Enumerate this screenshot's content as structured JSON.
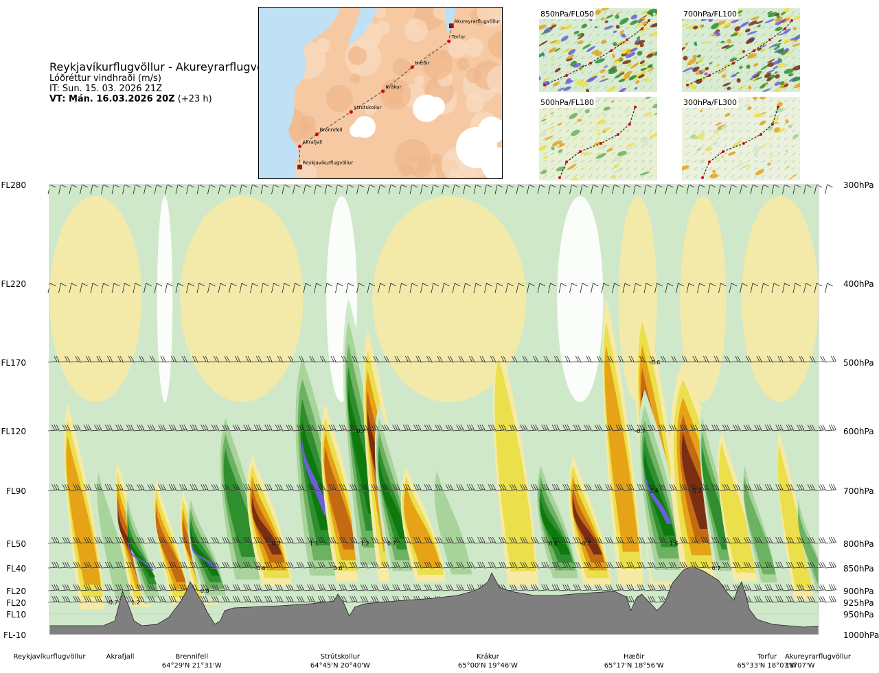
{
  "header": {
    "title": "Reykjavíkurflugvöllur - Akureyrarflugvöllur",
    "parameter": "Lóðréttur vindhraði (m/s)",
    "issue_time": "IT: Sun. 15. 03. 2026 21Z",
    "valid_time_bold": "VT: Mán. 16.03.2026 20Z",
    "valid_time_offset": "(+23 h)"
  },
  "map": {
    "route_points": [
      {
        "name": "Akureyrarflugvöllur",
        "lon": 0.79,
        "lat": 0.11
      },
      {
        "name": "Torfur",
        "lon": 0.78,
        "lat": 0.2
      },
      {
        "name": "Hæðir",
        "lon": 0.63,
        "lat": 0.35
      },
      {
        "name": "Krákur",
        "lon": 0.51,
        "lat": 0.49
      },
      {
        "name": "Strútskollur",
        "lon": 0.38,
        "lat": 0.61
      },
      {
        "name": "Brennifell",
        "lon": 0.24,
        "lat": 0.74
      },
      {
        "name": "Akrafjall",
        "lon": 0.17,
        "lat": 0.81
      },
      {
        "name": "Reykjavíkurflugvöllur",
        "lon": 0.17,
        "lat": 0.93
      }
    ],
    "colors": {
      "sea": "#bfe0f5",
      "land": "#f6c9a3",
      "ice": "#ffffff",
      "route": "#444444",
      "marker": "#e0001b"
    }
  },
  "insets": [
    {
      "label": "850hPa/FL050"
    },
    {
      "label": "700hPa/FL100"
    },
    {
      "label": "500hPa/FL180"
    },
    {
      "label": "300hPa/FL300"
    }
  ],
  "chart_data": {
    "type": "heatmap",
    "title": "Reykjavíkurflugvöllur - Akureyrarflugvöllur",
    "quantity": "Lóðréttur vindhraði (m/s)",
    "x_range": [
      0,
      1
    ],
    "y_levels": [
      {
        "fl": "FL280",
        "hpa": "300hPa",
        "p": 300
      },
      {
        "fl": "FL220",
        "hpa": "400hPa",
        "p": 400
      },
      {
        "fl": "FL170",
        "hpa": "500hPa",
        "p": 500
      },
      {
        "fl": "FL120",
        "hpa": "600hPa",
        "p": 600
      },
      {
        "fl": "FL90",
        "hpa": "700hPa",
        "p": 700
      },
      {
        "fl": "FL50",
        "hpa": "800hPa",
        "p": 800
      },
      {
        "fl": "FL40",
        "hpa": "850hPa",
        "p": 850
      },
      {
        "fl": "FL20",
        "hpa": "900hPa",
        "p": 900
      },
      {
        "fl": "FL20",
        "hpa": "925hPa",
        "p": 925
      },
      {
        "fl": "FL10",
        "hpa": "950hPa",
        "p": 950
      },
      {
        "fl": "FL-10",
        "hpa": "1000hPa",
        "p": 1000
      }
    ],
    "x_locations": [
      {
        "name": "Reykjavíkurflugvöllur",
        "coord": "",
        "x": 0.0
      },
      {
        "name": "Akrafjall",
        "coord": "",
        "x": 0.092
      },
      {
        "name": "Brennifell",
        "coord": "64°29'N 21°31'W",
        "x": 0.185
      },
      {
        "name": "Strútskollur",
        "coord": "64°45'N 20°40'W",
        "x": 0.378
      },
      {
        "name": "Krákur",
        "coord": "65°00'N 19°46'W",
        "x": 0.57
      },
      {
        "name": "Hæðir",
        "coord": "65°17'N 18°56'W",
        "x": 0.76
      },
      {
        "name": "Torfur",
        "coord": "65°33'N 18°07'W",
        "x": 0.935
      },
      {
        "name": "Akureyrarflugvöllur",
        "coord": "18°07'W",
        "x": 1.0
      }
    ],
    "value_labels": [
      {
        "text": "-0.6",
        "x": 0.787,
        "p": 500
      },
      {
        "text": "0.7",
        "x": 0.405,
        "p": 600
      },
      {
        "text": "-0.7",
        "x": 0.768,
        "p": 600
      },
      {
        "text": "2.4",
        "x": 0.786,
        "p": 700
      },
      {
        "text": "-0.7",
        "x": 0.841,
        "p": 700
      },
      {
        "text": "0.7",
        "x": 0.295,
        "p": 800
      },
      {
        "text": "1.1",
        "x": 0.344,
        "p": 800
      },
      {
        "text": "1.2",
        "x": 0.41,
        "p": 800
      },
      {
        "text": "0.7",
        "x": 0.445,
        "p": 800
      },
      {
        "text": "0.6",
        "x": 0.655,
        "p": 800
      },
      {
        "text": "-0.7",
        "x": 0.697,
        "p": 800
      },
      {
        "text": "1.6",
        "x": 0.812,
        "p": 800
      },
      {
        "text": "-0.6",
        "x": 0.274,
        "p": 850
      },
      {
        "text": "0.6",
        "x": 0.375,
        "p": 850
      },
      {
        "text": "0.7",
        "x": 0.867,
        "p": 850
      },
      {
        "text": "0.8",
        "x": 0.202,
        "p": 900
      },
      {
        "text": "-0.7",
        "x": 0.082,
        "p": 925
      },
      {
        "text": "1.2",
        "x": 0.112,
        "p": 925
      }
    ],
    "colors": {
      "neg_strong": "#7a2e12",
      "neg_mid": "#c46a12",
      "neg_low": "#e6a317",
      "neg_weak": "#ebe04b",
      "neg_faint": "#f6eaa6",
      "pos_faint": "#cfe8c9",
      "pos_weak": "#a8d49c",
      "pos_low": "#6db262",
      "pos_mid": "#2f8f2f",
      "pos_strong": "#0e7a0e",
      "pos_max": "#6a5fd8",
      "terrain": "#7f7f7f"
    }
  }
}
